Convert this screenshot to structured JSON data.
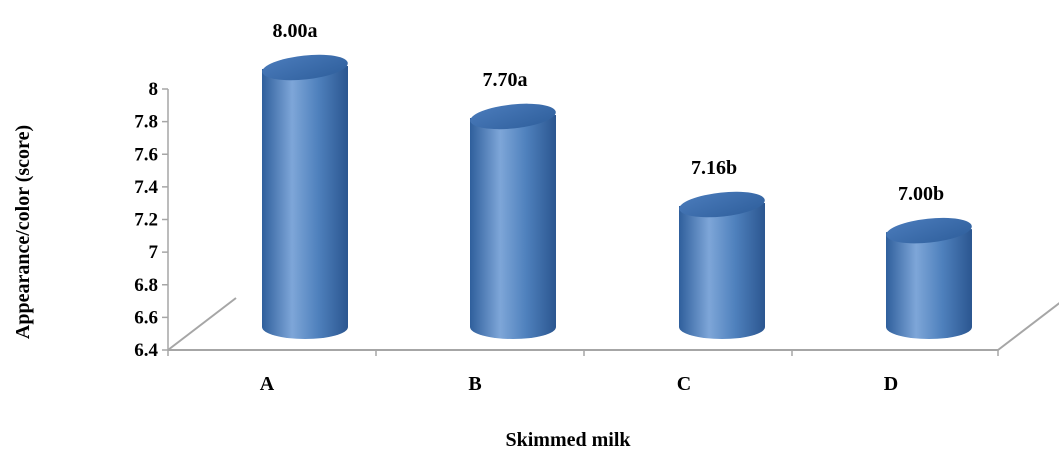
{
  "chart_data": {
    "type": "bar",
    "style": "3d-cylinder",
    "categories": [
      "A",
      "B",
      "C",
      "D"
    ],
    "values": [
      8.0,
      7.7,
      7.16,
      7.0
    ],
    "data_labels": [
      "8.00a",
      "7.70a",
      "7.16b",
      "7.00b"
    ],
    "title": "",
    "xlabel": "Skimmed milk",
    "ylabel": "Appearance/color (score)",
    "ylim": [
      6.4,
      8
    ],
    "yticks": [
      "6.4",
      "6.6",
      "6.8",
      "7",
      "7.2",
      "7.4",
      "7.6",
      "7.8",
      "8"
    ],
    "grid": false,
    "legend": "none",
    "bar_color": "#4f81bd",
    "bar_color_dark": "#2f5f9c",
    "bar_color_light": "#7ea6d8",
    "floor_color": "#a6a6a6"
  }
}
